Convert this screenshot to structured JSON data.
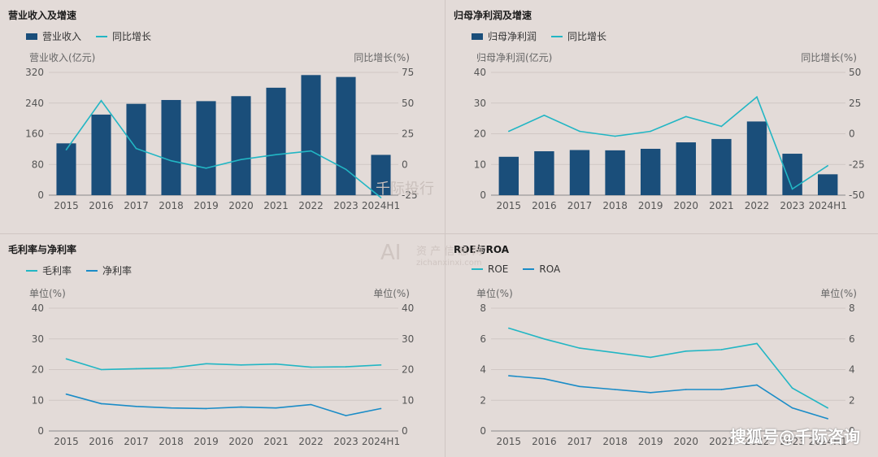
{
  "watermarks": {
    "a": "千际投行",
    "b": "AI",
    "c": "资 产 信 息 网",
    "d": "zichanxinxi.com",
    "sohu": "搜狐号@千际咨询"
  },
  "chart_data": [
    {
      "type": "bar",
      "title": "营业收入及增速",
      "legend": [
        "营业收入",
        "同比增长"
      ],
      "ylabel": "营业收入(亿元)",
      "y2label": "同比增长(%)",
      "categories": [
        "2015",
        "2016",
        "2017",
        "2018",
        "2019",
        "2020",
        "2021",
        "2022",
        "2023",
        "2024H1"
      ],
      "ylim": [
        0,
        320
      ],
      "yticks": [
        0,
        80,
        160,
        240,
        320
      ],
      "y2lim": [
        -25,
        75
      ],
      "y2ticks": [
        -25,
        0,
        25,
        50,
        75
      ],
      "series": [
        {
          "name": "营业收入",
          "type": "bar",
          "axis": "left",
          "color": "#1a4e7a",
          "values": [
            135,
            210,
            238,
            248,
            245,
            258,
            280,
            313,
            308,
            105
          ]
        },
        {
          "name": "同比增长",
          "type": "line",
          "axis": "right",
          "color": "#22b6c4",
          "values": [
            12,
            52,
            13,
            3,
            -3,
            4,
            8,
            11,
            -4,
            -27
          ]
        }
      ]
    },
    {
      "type": "bar",
      "title": "归母净利润及增速",
      "legend": [
        "归母净利润",
        "同比增长"
      ],
      "ylabel": "归母净利润(亿元)",
      "y2label": "同比增长(%)",
      "categories": [
        "2015",
        "2016",
        "2017",
        "2018",
        "2019",
        "2020",
        "2021",
        "2022",
        "2023",
        "2024H1"
      ],
      "ylim": [
        0,
        40
      ],
      "yticks": [
        0,
        10,
        20,
        30,
        40
      ],
      "y2lim": [
        -50,
        50
      ],
      "y2ticks": [
        -50,
        -25,
        0,
        25,
        50
      ],
      "series": [
        {
          "name": "归母净利润",
          "type": "bar",
          "axis": "left",
          "color": "#1a4e7a",
          "values": [
            12.5,
            14.3,
            14.7,
            14.6,
            15.1,
            17.2,
            18.3,
            24,
            13.5,
            6.8
          ]
        },
        {
          "name": "同比增长",
          "type": "line",
          "axis": "right",
          "color": "#22b6c4",
          "values": [
            2,
            15,
            2,
            -2,
            2,
            14,
            6,
            30,
            -45,
            -26
          ]
        }
      ]
    },
    {
      "type": "line",
      "title": "毛利率与净利率",
      "legend": [
        "毛利率",
        "净利率"
      ],
      "ylabel": "单位(%)",
      "y2label": "单位(%)",
      "categories": [
        "2015",
        "2016",
        "2017",
        "2018",
        "2019",
        "2020",
        "2021",
        "2022",
        "2023",
        "2024H1"
      ],
      "ylim": [
        0,
        40
      ],
      "yticks": [
        0,
        10,
        20,
        30,
        40
      ],
      "y2lim": [
        0,
        40
      ],
      "y2ticks": [
        0,
        10,
        20,
        30,
        40
      ],
      "series": [
        {
          "name": "毛利率",
          "type": "line",
          "axis": "left",
          "color": "#22b6c4",
          "values": [
            23.5,
            20,
            20.3,
            20.5,
            21.9,
            21.5,
            21.8,
            20.8,
            20.9,
            21.5
          ]
        },
        {
          "name": "净利率",
          "type": "line",
          "axis": "left",
          "color": "#1a8cc7",
          "values": [
            12,
            8.9,
            8,
            7.5,
            7.3,
            7.8,
            7.5,
            8.6,
            5,
            7.3
          ]
        }
      ]
    },
    {
      "type": "line",
      "title": "ROE与ROA",
      "legend": [
        "ROE",
        "ROA"
      ],
      "ylabel": "单位(%)",
      "y2label": "单位(%)",
      "categories": [
        "2015",
        "2016",
        "2017",
        "2018",
        "2019",
        "2020",
        "2021",
        "2022",
        "2023",
        "2024H1"
      ],
      "ylim": [
        0,
        8
      ],
      "yticks": [
        0,
        2,
        4,
        6,
        8
      ],
      "y2lim": [
        0,
        8
      ],
      "y2ticks": [
        0,
        2,
        4,
        6,
        8
      ],
      "series": [
        {
          "name": "ROE",
          "type": "line",
          "axis": "left",
          "color": "#22b6c4",
          "values": [
            6.7,
            6,
            5.4,
            5.1,
            4.8,
            5.2,
            5.3,
            5.7,
            2.8,
            1.5
          ]
        },
        {
          "name": "ROA",
          "type": "line",
          "axis": "left",
          "color": "#1a8cc7",
          "values": [
            3.6,
            3.4,
            2.9,
            2.7,
            2.5,
            2.7,
            2.7,
            3,
            1.5,
            0.8
          ]
        }
      ]
    }
  ]
}
